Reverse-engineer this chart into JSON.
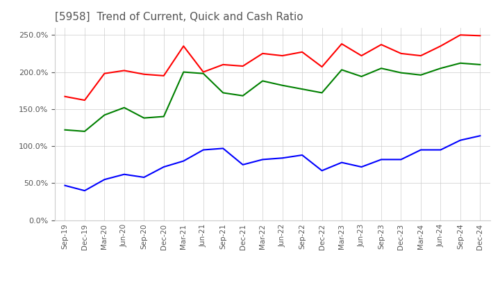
{
  "title": "[5958]  Trend of Current, Quick and Cash Ratio",
  "x_labels": [
    "Sep-19",
    "Dec-19",
    "Mar-20",
    "Jun-20",
    "Sep-20",
    "Dec-20",
    "Mar-21",
    "Jun-21",
    "Sep-21",
    "Dec-21",
    "Mar-22",
    "Jun-22",
    "Sep-22",
    "Dec-22",
    "Mar-23",
    "Jun-23",
    "Sep-23",
    "Dec-23",
    "Mar-24",
    "Jun-24",
    "Sep-24",
    "Dec-24"
  ],
  "current_ratio": [
    1.67,
    1.62,
    1.98,
    2.02,
    1.97,
    1.95,
    2.35,
    2.0,
    2.1,
    2.08,
    2.25,
    2.22,
    2.27,
    2.07,
    2.38,
    2.22,
    2.37,
    2.25,
    2.22,
    2.35,
    2.5,
    2.49
  ],
  "quick_ratio": [
    1.22,
    1.2,
    1.42,
    1.52,
    1.38,
    1.4,
    2.0,
    1.98,
    1.72,
    1.68,
    1.88,
    1.82,
    1.77,
    1.72,
    2.03,
    1.94,
    2.05,
    1.99,
    1.96,
    2.05,
    2.12,
    2.1
  ],
  "cash_ratio": [
    0.47,
    0.4,
    0.55,
    0.62,
    0.58,
    0.72,
    0.8,
    0.95,
    0.97,
    0.75,
    0.82,
    0.84,
    0.88,
    0.67,
    0.78,
    0.72,
    0.82,
    0.82,
    0.95,
    0.95,
    1.08,
    1.14
  ],
  "current_color": "#ff0000",
  "quick_color": "#008000",
  "cash_color": "#0000ff",
  "ylim": [
    0.0,
    2.6
  ],
  "yticks": [
    0.0,
    0.5,
    1.0,
    1.5,
    2.0,
    2.5
  ],
  "background_color": "#ffffff",
  "grid_color": "#cccccc"
}
